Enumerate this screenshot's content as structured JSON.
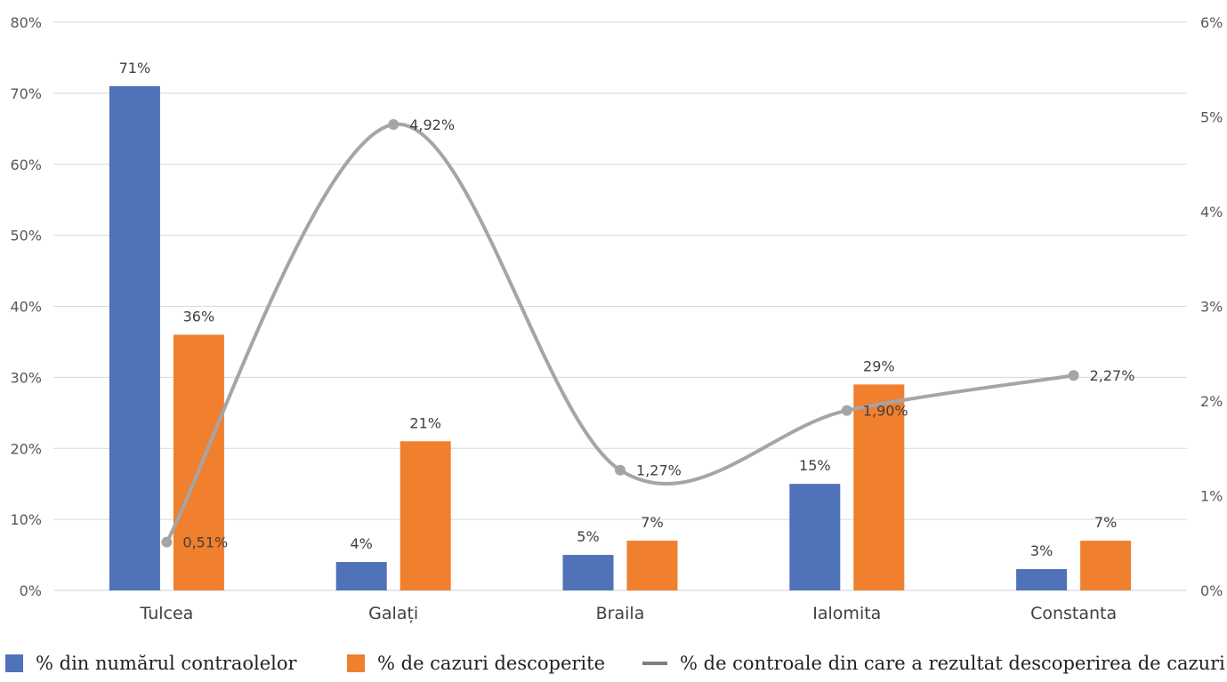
{
  "chart_data": {
    "type": "bar",
    "categories": [
      "Tulcea",
      "Galați",
      "Braila",
      "Ialomita",
      "Constanta"
    ],
    "series": [
      {
        "name": "% din numărul contraolelor",
        "type": "bar",
        "axis": "left",
        "color": "#4f72b8",
        "values": [
          71,
          4,
          5,
          15,
          3
        ],
        "labels": [
          "71%",
          "4%",
          "5%",
          "15%",
          "3%"
        ]
      },
      {
        "name": "% de cazuri descoperite",
        "type": "bar",
        "axis": "left",
        "color": "#f07f2e",
        "values": [
          36,
          21,
          7,
          29,
          7
        ],
        "labels": [
          "36%",
          "21%",
          "7%",
          "29%",
          "7%"
        ]
      },
      {
        "name": "% de controale din care a rezultat descoperirea de cazuri",
        "type": "line",
        "smooth": true,
        "axis": "right",
        "color": "#a5a5a5",
        "values": [
          0.51,
          4.92,
          1.27,
          1.9,
          2.27
        ],
        "labels": [
          "0,51%",
          "4,92%",
          "1,27%",
          "1,90%",
          "2,27%"
        ]
      }
    ],
    "y_left": {
      "ylim": [
        0,
        80
      ],
      "ticks": [
        0,
        10,
        20,
        30,
        40,
        50,
        60,
        70,
        80
      ],
      "tick_labels": [
        "0%",
        "10%",
        "20%",
        "30%",
        "40%",
        "50%",
        "60%",
        "70%",
        "80%"
      ]
    },
    "y_right": {
      "ylim": [
        0,
        6
      ],
      "ticks": [
        0,
        1,
        2,
        3,
        4,
        5,
        6
      ],
      "tick_labels": [
        "0%",
        "1%",
        "2%",
        "3%",
        "4%",
        "5%",
        "6%"
      ]
    },
    "grid": true,
    "legend_position": "bottom"
  },
  "legend": {
    "item1": "% din numărul contraolelor",
    "item2": "% de cazuri descoperite",
    "item3": "% de controale din care a rezultat descoperirea de cazuri"
  }
}
